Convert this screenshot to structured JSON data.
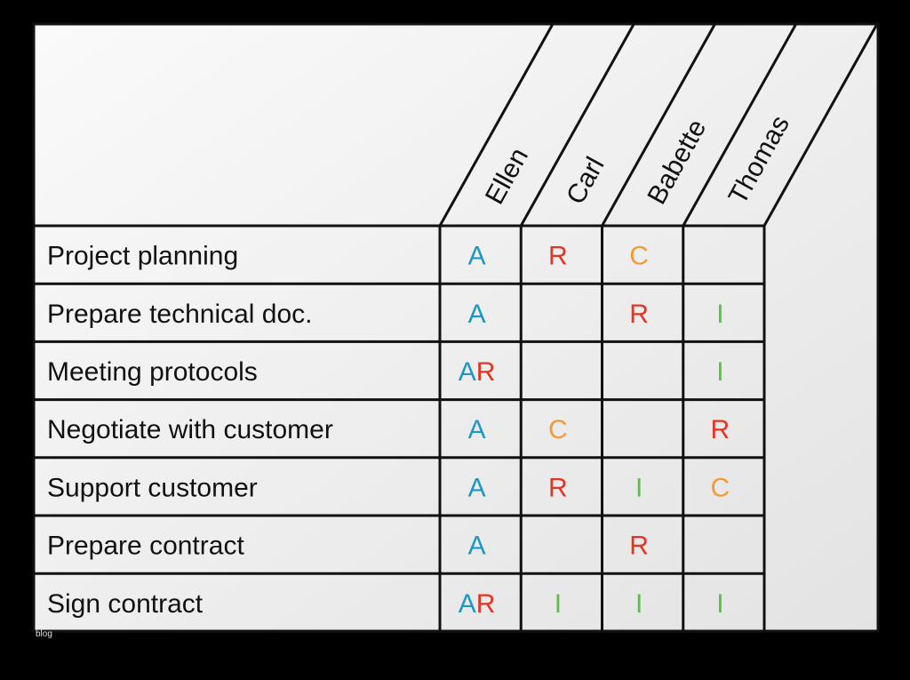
{
  "colors": {
    "background": "#000000",
    "paper": "#ededed",
    "line": "#111111",
    "A": "#1e97c2",
    "R": "#e63322",
    "C": "#f29a38",
    "I": "#5cbf4a"
  },
  "people": [
    "Ellen",
    "Carl",
    "Babette",
    "Thomas"
  ],
  "tasks": [
    {
      "name": "Project planning",
      "cells": [
        "A",
        "R",
        "C",
        ""
      ]
    },
    {
      "name": "Prepare technical doc.",
      "cells": [
        "A",
        "",
        "R",
        "I"
      ]
    },
    {
      "name": "Meeting protocols",
      "cells": [
        "AR",
        "",
        "",
        "I"
      ]
    },
    {
      "name": "Negotiate with customer",
      "cells": [
        "A",
        "C",
        "",
        "R"
      ]
    },
    {
      "name": "Support customer",
      "cells": [
        "A",
        "R",
        "I",
        "C"
      ]
    },
    {
      "name": "Prepare contract",
      "cells": [
        "A",
        "",
        "R",
        ""
      ]
    },
    {
      "name": "Sign contract",
      "cells": [
        "AR",
        "I",
        "I",
        "I"
      ]
    }
  ],
  "watermark": "blog"
}
